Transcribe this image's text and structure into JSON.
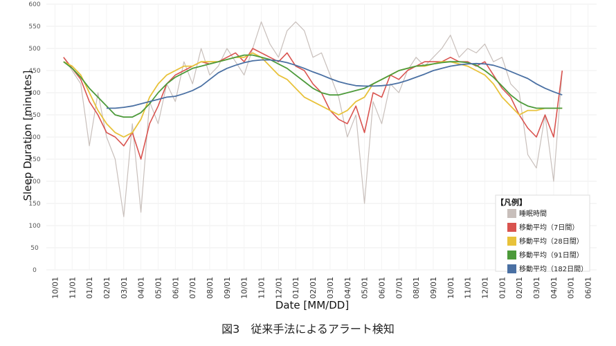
{
  "caption": "図3　従来手法によるアラート検知",
  "chart_data": {
    "type": "line",
    "xlabel": "Date [MM/DD]",
    "ylabel": "Sleep Duration [minutes]",
    "ylim": [
      0,
      600
    ],
    "yticks": [
      0,
      50,
      100,
      150,
      200,
      250,
      300,
      350,
      400,
      450,
      500,
      550,
      600
    ],
    "x_tick_labels": [
      "10/01",
      "11/01",
      "01/01",
      "02/01",
      "03/01",
      "04/01",
      "05/01",
      "06/01",
      "07/01",
      "08/01",
      "09/01",
      "10/01",
      "11/01",
      "12/01",
      "01/01",
      "02/01",
      "03/01",
      "04/01",
      "05/01",
      "06/01",
      "07/01",
      "08/01",
      "09/01",
      "10/01",
      "11/01",
      "12/01",
      "01/01",
      "02/01",
      "03/01",
      "04/01",
      "05/01",
      "06/01"
    ],
    "grid": true,
    "legend": {
      "title": "【凡例】",
      "placement": "bottom-right",
      "entries": [
        {
          "name": "睡眠時間",
          "color": "#c8bfbb"
        },
        {
          "name": "移動平均（7日間）",
          "color": "#d9534f"
        },
        {
          "name": "移動平均（28日間）",
          "color": "#e8c23a"
        },
        {
          "name": "移動平均（91日間）",
          "color": "#4c9a3a"
        },
        {
          "name": "移動平均（182日間）",
          "color": "#4a70a3"
        }
      ]
    },
    "series": [
      {
        "name": "睡眠時間",
        "color": "#c8bfbb",
        "x": [
          1.0,
          1.5,
          2.0,
          2.5,
          3.0,
          3.5,
          4.0,
          4.5,
          5.0,
          5.5,
          6.0,
          6.5,
          7.0,
          7.5,
          8.0,
          8.5,
          9.0,
          9.5,
          10.0,
          10.5,
          11.0,
          11.5,
          12.0,
          12.5,
          13.0,
          13.5,
          14.0,
          14.5,
          15.0,
          15.5,
          16.0,
          16.5,
          17.0,
          17.5,
          18.0,
          18.5,
          19.0,
          19.5,
          20.0,
          20.5,
          21.0,
          21.5,
          22.0,
          22.5,
          23.0,
          23.5,
          24.0,
          24.5,
          25.0,
          25.5,
          26.0,
          26.5,
          27.0,
          27.5,
          28.0,
          28.5,
          29.0,
          29.5,
          30.0
        ],
        "y": [
          480,
          450,
          420,
          280,
          400,
          300,
          250,
          120,
          330,
          130,
          380,
          330,
          420,
          380,
          470,
          420,
          500,
          440,
          460,
          500,
          470,
          440,
          500,
          560,
          510,
          480,
          540,
          560,
          540,
          480,
          490,
          440,
          390,
          300,
          350,
          150,
          380,
          330,
          420,
          400,
          450,
          480,
          460,
          480,
          500,
          530,
          480,
          500,
          490,
          510,
          470,
          480,
          420,
          400,
          260,
          230,
          350,
          200,
          450
        ]
      },
      {
        "name": "移動平均（7日間）",
        "color": "#d9534f",
        "x": [
          1.0,
          1.5,
          2.0,
          2.5,
          3.0,
          3.5,
          4.0,
          4.5,
          5.0,
          5.5,
          6.0,
          6.5,
          7.0,
          7.5,
          8.0,
          8.5,
          9.0,
          9.5,
          10.0,
          10.5,
          11.0,
          11.5,
          12.0,
          12.5,
          13.0,
          13.5,
          14.0,
          14.5,
          15.0,
          15.5,
          16.0,
          16.5,
          17.0,
          17.5,
          18.0,
          18.5,
          19.0,
          19.5,
          20.0,
          20.5,
          21.0,
          21.5,
          22.0,
          22.5,
          23.0,
          23.5,
          24.0,
          24.5,
          25.0,
          25.5,
          26.0,
          26.5,
          27.0,
          27.5,
          28.0,
          28.5,
          29.0,
          29.5,
          30.0
        ],
        "y": [
          480,
          455,
          430,
          380,
          350,
          310,
          300,
          280,
          310,
          250,
          330,
          370,
          420,
          440,
          450,
          460,
          470,
          465,
          470,
          480,
          490,
          470,
          500,
          490,
          480,
          470,
          490,
          460,
          450,
          420,
          400,
          360,
          340,
          330,
          370,
          310,
          400,
          390,
          440,
          430,
          450,
          460,
          470,
          470,
          470,
          480,
          470,
          470,
          460,
          470,
          440,
          410,
          390,
          350,
          320,
          300,
          350,
          300,
          450
        ]
      },
      {
        "name": "移動平均（28日間）",
        "color": "#e8c23a",
        "x": [
          1.0,
          1.5,
          2.0,
          2.5,
          3.0,
          3.5,
          4.0,
          4.5,
          5.0,
          5.5,
          6.0,
          6.5,
          7.0,
          7.5,
          8.0,
          8.5,
          9.0,
          9.5,
          10.0,
          10.5,
          11.0,
          11.5,
          12.0,
          12.5,
          13.0,
          13.5,
          14.0,
          14.5,
          15.0,
          15.5,
          16.0,
          16.5,
          17.0,
          17.5,
          18.0,
          18.5,
          19.0,
          19.5,
          20.0,
          20.5,
          21.0,
          21.5,
          22.0,
          22.5,
          23.0,
          23.5,
          24.0,
          24.5,
          25.0,
          25.5,
          26.0,
          26.5,
          27.0,
          27.5,
          28.0,
          28.5,
          29.0,
          29.5,
          30.0
        ],
        "y": [
          470,
          460,
          440,
          400,
          360,
          330,
          310,
          300,
          310,
          340,
          390,
          420,
          440,
          450,
          460,
          460,
          470,
          470,
          470,
          475,
          480,
          480,
          490,
          480,
          460,
          440,
          430,
          410,
          390,
          380,
          370,
          360,
          350,
          360,
          380,
          390,
          420,
          430,
          440,
          450,
          455,
          460,
          460,
          465,
          470,
          470,
          465,
          460,
          450,
          440,
          420,
          390,
          370,
          350,
          360,
          360,
          365,
          365,
          365
        ]
      },
      {
        "name": "移動平均（91日間）",
        "color": "#4c9a3a",
        "x": [
          1.0,
          1.5,
          2.0,
          2.5,
          3.0,
          3.5,
          4.0,
          4.5,
          5.0,
          5.5,
          6.0,
          6.5,
          7.0,
          7.5,
          8.0,
          8.5,
          9.0,
          9.5,
          10.0,
          10.5,
          11.0,
          11.5,
          12.0,
          12.5,
          13.0,
          13.5,
          14.0,
          14.5,
          15.0,
          15.5,
          16.0,
          16.5,
          17.0,
          17.5,
          18.0,
          18.5,
          19.0,
          19.5,
          20.0,
          20.5,
          21.0,
          21.5,
          22.0,
          22.5,
          23.0,
          23.5,
          24.0,
          24.5,
          25.0,
          25.5,
          26.0,
          26.5,
          27.0,
          27.5,
          28.0,
          28.5,
          29.0,
          29.5,
          30.0
        ],
        "y": [
          470,
          455,
          435,
          410,
          390,
          370,
          350,
          345,
          345,
          355,
          375,
          400,
          420,
          435,
          445,
          455,
          460,
          465,
          470,
          475,
          480,
          485,
          485,
          480,
          475,
          465,
          455,
          440,
          425,
          410,
          400,
          395,
          395,
          400,
          405,
          410,
          420,
          430,
          440,
          450,
          455,
          460,
          462,
          465,
          468,
          470,
          470,
          468,
          462,
          450,
          435,
          415,
          395,
          380,
          370,
          365,
          365,
          365,
          365
        ]
      },
      {
        "name": "移動平均（182日間）",
        "color": "#4a70a3",
        "x": [
          3.5,
          4.0,
          4.5,
          5.0,
          5.5,
          6.0,
          6.5,
          7.0,
          7.5,
          8.0,
          8.5,
          9.0,
          9.5,
          10.0,
          10.5,
          11.0,
          11.5,
          12.0,
          12.5,
          13.0,
          13.5,
          14.0,
          14.5,
          15.0,
          15.5,
          16.0,
          16.5,
          17.0,
          17.5,
          18.0,
          18.5,
          19.0,
          19.5,
          20.0,
          20.5,
          21.0,
          21.5,
          22.0,
          22.5,
          23.0,
          23.5,
          24.0,
          24.5,
          25.0,
          25.5,
          26.0,
          26.5,
          27.0,
          27.5,
          28.0,
          28.5,
          29.0,
          29.5,
          30.0
        ],
        "y": [
          365,
          365,
          367,
          370,
          375,
          380,
          385,
          390,
          392,
          398,
          405,
          415,
          430,
          445,
          455,
          462,
          468,
          472,
          474,
          474,
          472,
          468,
          462,
          455,
          447,
          440,
          432,
          425,
          420,
          416,
          415,
          415,
          416,
          418,
          422,
          428,
          435,
          442,
          450,
          455,
          460,
          463,
          465,
          466,
          465,
          462,
          456,
          448,
          440,
          432,
          420,
          410,
          402,
          395
        ]
      }
    ]
  }
}
